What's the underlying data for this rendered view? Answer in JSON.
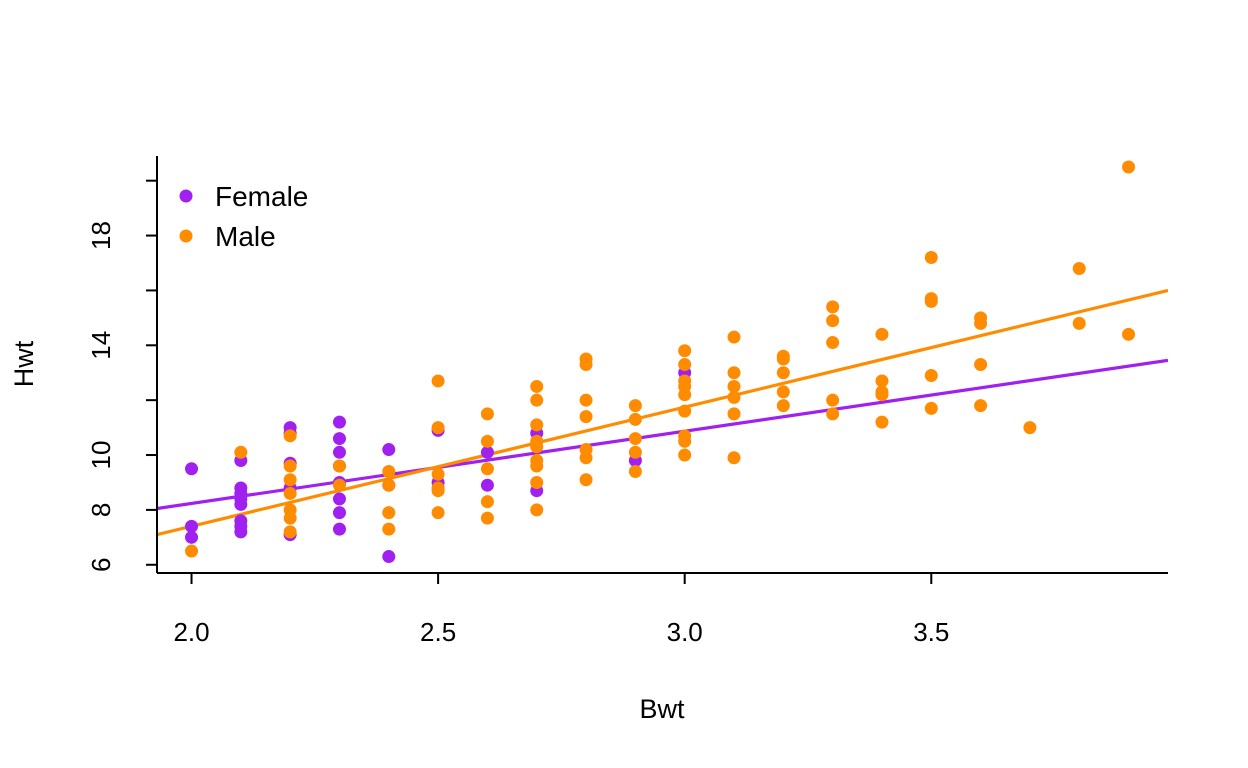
{
  "chart_data": {
    "type": "scatter",
    "xlabel": "Bwt",
    "ylabel": "Hwt",
    "xlim": [
      1.93,
      3.98
    ],
    "ylim": [
      5.7,
      20.9
    ],
    "x_ticks": [
      "2.0",
      "2.5",
      "3.0",
      "3.5"
    ],
    "x_tick_values": [
      2.0,
      2.5,
      3.0,
      3.5
    ],
    "y_ticks": [
      6,
      8,
      10,
      12,
      14,
      16,
      18,
      20
    ],
    "y_tick_labels": [
      "6",
      "8",
      "10",
      "",
      "14",
      "",
      "18",
      ""
    ],
    "legend": {
      "position": "top-left",
      "entries": [
        {
          "label": "Female",
          "color": "#a020f0"
        },
        {
          "label": "Male",
          "color": "#ff8c00"
        }
      ]
    },
    "series": [
      {
        "name": "Female",
        "color": "#a020f0",
        "points": [
          [
            2.0,
            9.5
          ],
          [
            2.0,
            7.4
          ],
          [
            2.0,
            7.0
          ],
          [
            2.1,
            9.8
          ],
          [
            2.1,
            8.8
          ],
          [
            2.1,
            8.6
          ],
          [
            2.1,
            8.4
          ],
          [
            2.1,
            8.2
          ],
          [
            2.1,
            7.6
          ],
          [
            2.1,
            7.4
          ],
          [
            2.1,
            7.2
          ],
          [
            2.2,
            11.0
          ],
          [
            2.2,
            10.8
          ],
          [
            2.2,
            9.7
          ],
          [
            2.2,
            8.8
          ],
          [
            2.2,
            7.1
          ],
          [
            2.3,
            11.2
          ],
          [
            2.3,
            10.6
          ],
          [
            2.3,
            10.1
          ],
          [
            2.3,
            9.6
          ],
          [
            2.3,
            9.0
          ],
          [
            2.3,
            8.4
          ],
          [
            2.3,
            7.9
          ],
          [
            2.3,
            7.3
          ],
          [
            2.4,
            10.2
          ],
          [
            2.4,
            8.9
          ],
          [
            2.4,
            6.3
          ],
          [
            2.5,
            10.9
          ],
          [
            2.5,
            9.0
          ],
          [
            2.6,
            10.1
          ],
          [
            2.6,
            8.9
          ],
          [
            2.7,
            10.8
          ],
          [
            2.7,
            8.7
          ],
          [
            2.9,
            9.8
          ],
          [
            3.0,
            13.0
          ]
        ],
        "fit": {
          "x0": 1.93,
          "y0": 8.05,
          "x1": 3.98,
          "y1": 13.45
        }
      },
      {
        "name": "Male",
        "color": "#ff8c00",
        "points": [
          [
            2.0,
            6.5
          ],
          [
            2.1,
            10.1
          ],
          [
            2.2,
            10.7
          ],
          [
            2.2,
            9.6
          ],
          [
            2.2,
            9.1
          ],
          [
            2.2,
            8.6
          ],
          [
            2.2,
            8.0
          ],
          [
            2.2,
            7.7
          ],
          [
            2.2,
            7.2
          ],
          [
            2.3,
            9.6
          ],
          [
            2.3,
            8.9
          ],
          [
            2.4,
            9.4
          ],
          [
            2.4,
            8.9
          ],
          [
            2.4,
            7.9
          ],
          [
            2.4,
            7.3
          ],
          [
            2.5,
            12.7
          ],
          [
            2.5,
            11.0
          ],
          [
            2.5,
            9.3
          ],
          [
            2.5,
            8.8
          ],
          [
            2.5,
            8.7
          ],
          [
            2.5,
            7.9
          ],
          [
            2.6,
            11.5
          ],
          [
            2.6,
            10.5
          ],
          [
            2.6,
            9.5
          ],
          [
            2.6,
            8.3
          ],
          [
            2.6,
            7.7
          ],
          [
            2.7,
            12.5
          ],
          [
            2.7,
            12.0
          ],
          [
            2.7,
            11.1
          ],
          [
            2.7,
            10.5
          ],
          [
            2.7,
            10.3
          ],
          [
            2.7,
            9.8
          ],
          [
            2.7,
            9.6
          ],
          [
            2.7,
            9.0
          ],
          [
            2.7,
            8.0
          ],
          [
            2.8,
            13.5
          ],
          [
            2.8,
            13.3
          ],
          [
            2.8,
            12.0
          ],
          [
            2.8,
            11.4
          ],
          [
            2.8,
            10.2
          ],
          [
            2.8,
            9.9
          ],
          [
            2.8,
            9.1
          ],
          [
            2.9,
            11.8
          ],
          [
            2.9,
            11.3
          ],
          [
            2.9,
            10.6
          ],
          [
            2.9,
            10.1
          ],
          [
            2.9,
            9.4
          ],
          [
            3.0,
            13.8
          ],
          [
            3.0,
            13.3
          ],
          [
            3.0,
            12.7
          ],
          [
            3.0,
            12.5
          ],
          [
            3.0,
            12.2
          ],
          [
            3.0,
            11.6
          ],
          [
            3.0,
            10.7
          ],
          [
            3.0,
            10.5
          ],
          [
            3.0,
            10.0
          ],
          [
            3.1,
            14.3
          ],
          [
            3.1,
            13.0
          ],
          [
            3.1,
            12.5
          ],
          [
            3.1,
            12.1
          ],
          [
            3.1,
            11.5
          ],
          [
            3.1,
            9.9
          ],
          [
            3.2,
            13.6
          ],
          [
            3.2,
            13.5
          ],
          [
            3.2,
            13.0
          ],
          [
            3.2,
            12.3
          ],
          [
            3.2,
            11.8
          ],
          [
            3.3,
            15.4
          ],
          [
            3.3,
            14.9
          ],
          [
            3.3,
            14.1
          ],
          [
            3.3,
            12.0
          ],
          [
            3.3,
            11.5
          ],
          [
            3.4,
            14.4
          ],
          [
            3.4,
            12.7
          ],
          [
            3.4,
            12.3
          ],
          [
            3.4,
            12.2
          ],
          [
            3.4,
            11.2
          ],
          [
            3.5,
            17.2
          ],
          [
            3.5,
            15.7
          ],
          [
            3.5,
            15.6
          ],
          [
            3.5,
            12.9
          ],
          [
            3.5,
            11.7
          ],
          [
            3.6,
            15.0
          ],
          [
            3.6,
            14.8
          ],
          [
            3.6,
            13.3
          ],
          [
            3.6,
            11.8
          ],
          [
            3.7,
            11.0
          ],
          [
            3.8,
            16.8
          ],
          [
            3.8,
            14.8
          ],
          [
            3.9,
            20.5
          ],
          [
            3.9,
            14.4
          ]
        ],
        "fit": {
          "x0": 1.93,
          "y0": 7.1,
          "x1": 3.98,
          "y1": 16.0
        }
      }
    ]
  }
}
